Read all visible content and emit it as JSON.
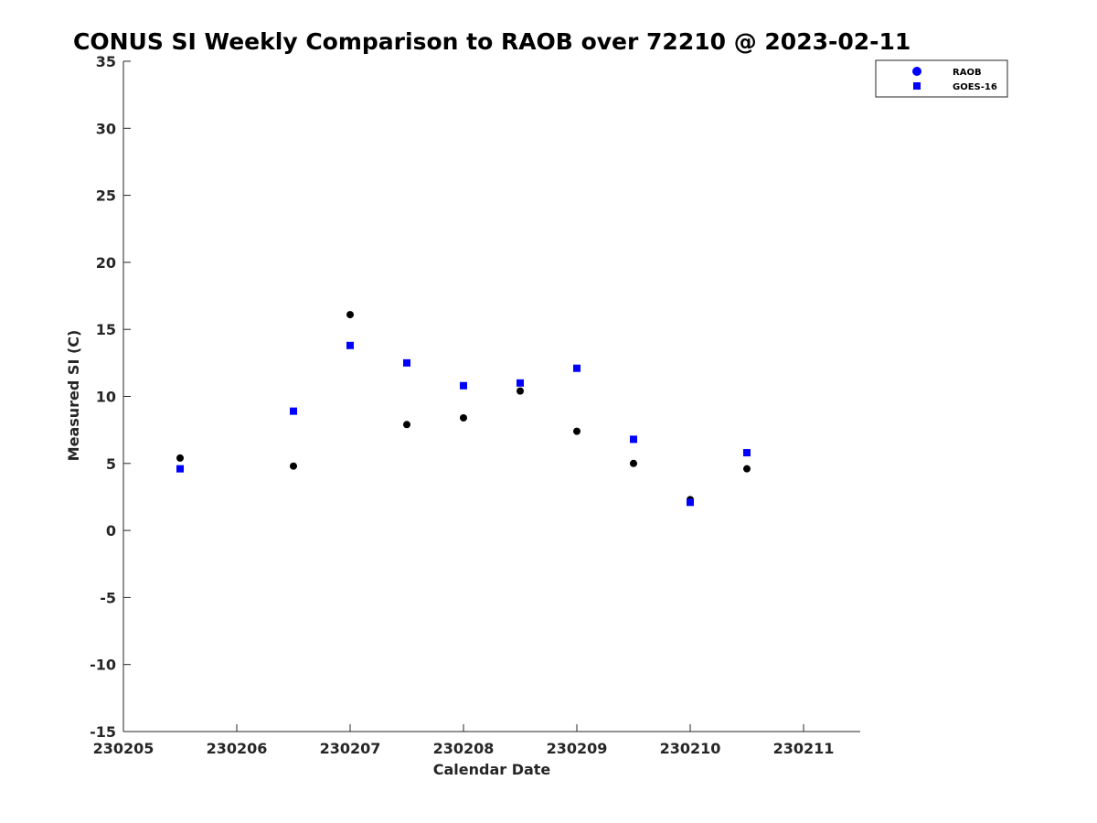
{
  "chart_data": {
    "type": "scatter",
    "title": "CONUS SI Weekly Comparison to RAOB over 72210 @ 2023-02-11",
    "xlabel": "Calendar Date",
    "ylabel": "Measured SI (C)",
    "xlim": [
      230205,
      230211.5
    ],
    "ylim": [
      -15,
      35
    ],
    "xticks": [
      230205,
      230206,
      230207,
      230208,
      230209,
      230210,
      230211
    ],
    "xtick_labels": [
      "230205",
      "230206",
      "230207",
      "230208",
      "230209",
      "230210",
      "230211"
    ],
    "yticks": [
      -15,
      -10,
      -5,
      0,
      5,
      10,
      15,
      20,
      25,
      30,
      35
    ],
    "ytick_labels": [
      "-15",
      "-10",
      "-5",
      "0",
      "5",
      "10",
      "15",
      "20",
      "25",
      "30",
      "35"
    ],
    "legend_position": "top-right",
    "series": [
      {
        "name": "RAOB",
        "marker": "circle",
        "color": "#000000",
        "legend_color": "#0000ff",
        "x": [
          230205.5,
          230206.5,
          230207.0,
          230207.5,
          230208.0,
          230208.5,
          230209.0,
          230209.5,
          230210.0,
          230210.5
        ],
        "y": [
          5.4,
          4.8,
          16.1,
          7.9,
          8.4,
          10.4,
          7.4,
          5.0,
          2.3,
          4.6
        ]
      },
      {
        "name": "GOES-16",
        "marker": "square",
        "color": "#0000ff",
        "legend_color": "#0000ff",
        "x": [
          230205.5,
          230206.5,
          230207.0,
          230207.5,
          230208.0,
          230208.5,
          230209.0,
          230209.5,
          230210.0,
          230210.5
        ],
        "y": [
          4.6,
          8.9,
          13.8,
          12.5,
          10.8,
          11.0,
          12.1,
          6.8,
          2.1,
          5.8
        ]
      }
    ]
  }
}
